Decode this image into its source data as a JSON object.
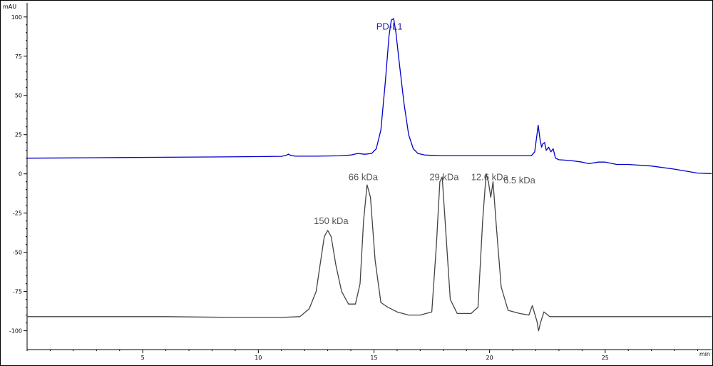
{
  "chart_data": {
    "type": "line",
    "title": "",
    "xlabel": "",
    "ylabel": "",
    "x_unit": "min",
    "y_unit": "mAU",
    "xlim": [
      0,
      29.6
    ],
    "ylim": [
      -112,
      109
    ],
    "x_ticks": [
      5,
      10,
      15,
      20,
      25
    ],
    "y_ticks": [
      100,
      75,
      50,
      25,
      0,
      -25,
      -50,
      -75,
      -100
    ],
    "grid": false,
    "legend": "none",
    "series": [
      {
        "color": "#0000cc",
        "points": [
          [
            0,
            10
          ],
          [
            2,
            10.2
          ],
          [
            4,
            10.4
          ],
          [
            6,
            10.6
          ],
          [
            8,
            10.8
          ],
          [
            10,
            11
          ],
          [
            11.0,
            11.2
          ],
          [
            11.2,
            11.8
          ],
          [
            11.3,
            12.6
          ],
          [
            11.4,
            11.8
          ],
          [
            11.6,
            11.3
          ],
          [
            12.5,
            11.3
          ],
          [
            13.5,
            11.5
          ],
          [
            14.0,
            12.0
          ],
          [
            14.3,
            13.0
          ],
          [
            14.6,
            12.5
          ],
          [
            14.9,
            13.0
          ],
          [
            15.1,
            16
          ],
          [
            15.3,
            28
          ],
          [
            15.5,
            60
          ],
          [
            15.65,
            88
          ],
          [
            15.75,
            98
          ],
          [
            15.85,
            99
          ],
          [
            15.95,
            90
          ],
          [
            16.1,
            70
          ],
          [
            16.3,
            45
          ],
          [
            16.5,
            25
          ],
          [
            16.7,
            16
          ],
          [
            16.9,
            13
          ],
          [
            17.2,
            12
          ],
          [
            18,
            11.5
          ],
          [
            19,
            11.5
          ],
          [
            20,
            11.5
          ],
          [
            21,
            11.5
          ],
          [
            21.8,
            11.5
          ],
          [
            21.95,
            14
          ],
          [
            22.05,
            25
          ],
          [
            22.1,
            31
          ],
          [
            22.18,
            22
          ],
          [
            22.25,
            17
          ],
          [
            22.3,
            19
          ],
          [
            22.38,
            20
          ],
          [
            22.45,
            15
          ],
          [
            22.55,
            17
          ],
          [
            22.65,
            14
          ],
          [
            22.75,
            16
          ],
          [
            22.85,
            10
          ],
          [
            23.0,
            9
          ],
          [
            23.5,
            8.5
          ],
          [
            24.0,
            7.5
          ],
          [
            24.3,
            6.5
          ],
          [
            24.7,
            7.5
          ],
          [
            25.0,
            7.5
          ],
          [
            25.5,
            6.0
          ],
          [
            26.0,
            6.0
          ],
          [
            27.0,
            5.0
          ],
          [
            28.0,
            3.0
          ],
          [
            29.0,
            0.5
          ],
          [
            29.6,
            0.2
          ]
        ]
      },
      {
        "color": "#444444",
        "points": [
          [
            0,
            -91
          ],
          [
            3,
            -91
          ],
          [
            6,
            -91
          ],
          [
            9,
            -91.5
          ],
          [
            11,
            -91.5
          ],
          [
            11.8,
            -91
          ],
          [
            12.2,
            -86
          ],
          [
            12.5,
            -75
          ],
          [
            12.7,
            -55
          ],
          [
            12.85,
            -40
          ],
          [
            13.0,
            -36
          ],
          [
            13.15,
            -40
          ],
          [
            13.35,
            -58
          ],
          [
            13.6,
            -75
          ],
          [
            13.9,
            -83
          ],
          [
            14.2,
            -83
          ],
          [
            14.4,
            -70
          ],
          [
            14.55,
            -30
          ],
          [
            14.7,
            -7
          ],
          [
            14.85,
            -15
          ],
          [
            15.05,
            -55
          ],
          [
            15.3,
            -82
          ],
          [
            15.6,
            -85
          ],
          [
            16.0,
            -88
          ],
          [
            16.5,
            -90
          ],
          [
            17.0,
            -90
          ],
          [
            17.5,
            -88
          ],
          [
            17.7,
            -45
          ],
          [
            17.85,
            -5
          ],
          [
            17.95,
            -2
          ],
          [
            18.1,
            -35
          ],
          [
            18.3,
            -80
          ],
          [
            18.6,
            -89
          ],
          [
            19.2,
            -89
          ],
          [
            19.5,
            -85
          ],
          [
            19.7,
            -30
          ],
          [
            19.85,
            0
          ],
          [
            19.95,
            -5
          ],
          [
            20.05,
            -15
          ],
          [
            20.15,
            -5
          ],
          [
            20.3,
            -35
          ],
          [
            20.5,
            -72
          ],
          [
            20.8,
            -87
          ],
          [
            21.3,
            -89
          ],
          [
            21.7,
            -90
          ],
          [
            21.85,
            -84
          ],
          [
            21.95,
            -89
          ],
          [
            22.05,
            -94
          ],
          [
            22.12,
            -100
          ],
          [
            22.2,
            -95
          ],
          [
            22.35,
            -88
          ],
          [
            22.6,
            -91
          ],
          [
            23.5,
            -91
          ],
          [
            25,
            -91
          ],
          [
            27,
            -91
          ],
          [
            29.6,
            -91
          ]
        ]
      }
    ],
    "annotations": [
      {
        "text": "PD-L1",
        "x": 15.1,
        "y": 92,
        "color": "#2222aa"
      },
      {
        "text": "150 kDa",
        "x": 12.4,
        "y": -32,
        "color": "#555555"
      },
      {
        "text": "66 kDa",
        "x": 13.9,
        "y": -4,
        "color": "#555555"
      },
      {
        "text": "29 kDa",
        "x": 17.4,
        "y": -4,
        "color": "#555555"
      },
      {
        "text": "12.6 kDa",
        "x": 19.2,
        "y": -4,
        "color": "#555555"
      },
      {
        "text": "6.5 kDa",
        "x": 20.6,
        "y": -6,
        "color": "#555555"
      }
    ]
  }
}
